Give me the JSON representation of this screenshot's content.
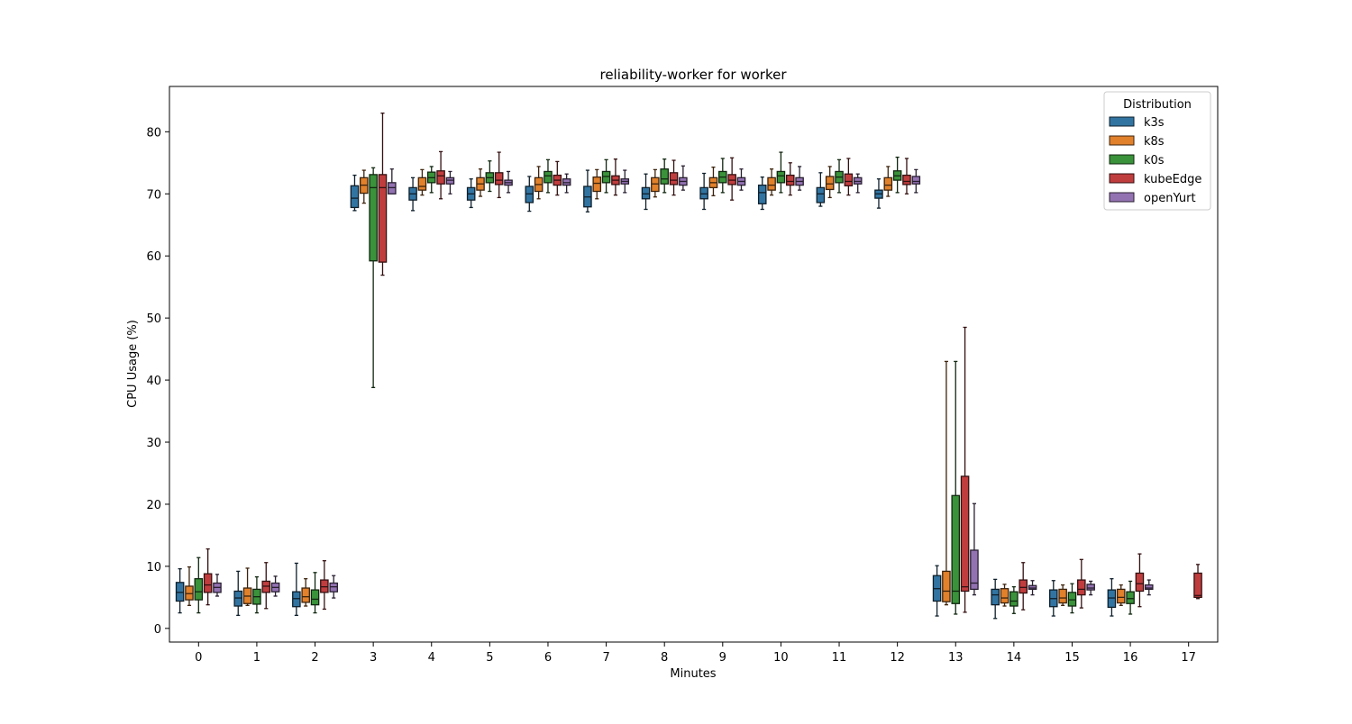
{
  "chart_data": {
    "type": "box",
    "title": "reliability-worker for worker",
    "xlabel": "Minutes",
    "ylabel": "CPU Usage (%)",
    "ylim": [
      -2.2,
      87.3
    ],
    "yticks": [
      0,
      10,
      20,
      30,
      40,
      50,
      60,
      70,
      80
    ],
    "categories": [
      "0",
      "1",
      "2",
      "3",
      "4",
      "5",
      "6",
      "7",
      "8",
      "9",
      "10",
      "11",
      "12",
      "13",
      "14",
      "15",
      "16",
      "17"
    ],
    "grid": false,
    "legend": {
      "title": "Distribution",
      "placement": "top-right"
    },
    "box_fields": [
      "whisker_low",
      "q1",
      "median",
      "q3",
      "whisker_high"
    ],
    "series": [
      {
        "name": "k3s",
        "color": "#3274a1",
        "boxes": [
          [
            2.5,
            4.4,
            5.8,
            7.4,
            9.6
          ],
          [
            2.1,
            3.6,
            4.9,
            6.0,
            9.2
          ],
          [
            2.1,
            3.5,
            4.8,
            5.9,
            10.5
          ],
          [
            67.3,
            67.8,
            69.3,
            71.3,
            73.0
          ],
          [
            67.3,
            69.0,
            70.0,
            71.0,
            72.6
          ],
          [
            67.8,
            69.0,
            70.0,
            71.0,
            72.4
          ],
          [
            67.2,
            68.6,
            70.0,
            71.2,
            72.8
          ],
          [
            67.1,
            67.9,
            69.5,
            71.2,
            73.8
          ],
          [
            67.5,
            69.2,
            70.0,
            71.0,
            73.2
          ],
          [
            67.5,
            69.2,
            70.0,
            71.0,
            73.3
          ],
          [
            67.5,
            68.4,
            70.2,
            71.4,
            72.7
          ],
          [
            68.0,
            68.6,
            70.0,
            71.0,
            73.4
          ],
          [
            67.7,
            69.3,
            70.0,
            70.6,
            72.4
          ],
          [
            2.0,
            4.4,
            6.4,
            8.5,
            10.1
          ],
          [
            1.6,
            3.8,
            5.4,
            6.3,
            7.9
          ],
          [
            2.0,
            3.5,
            4.8,
            6.2,
            7.7
          ],
          [
            2.0,
            3.4,
            4.9,
            6.2,
            8.0
          ],
          null
        ]
      },
      {
        "name": "k8s",
        "color": "#e1812c",
        "boxes": [
          [
            3.7,
            4.6,
            5.6,
            6.8,
            9.9
          ],
          [
            3.7,
            4.0,
            5.2,
            6.5,
            9.7
          ],
          [
            3.6,
            4.2,
            5.1,
            6.5,
            8.0
          ],
          [
            68.5,
            70.1,
            71.4,
            72.6,
            73.8
          ],
          [
            69.8,
            70.6,
            71.2,
            72.6,
            73.9
          ],
          [
            69.6,
            70.6,
            71.6,
            72.6,
            74.0
          ],
          [
            69.2,
            70.4,
            71.5,
            72.6,
            74.4
          ],
          [
            69.2,
            70.4,
            71.7,
            72.7,
            73.9
          ],
          [
            69.5,
            70.4,
            71.6,
            72.6,
            73.9
          ],
          [
            69.7,
            71.0,
            71.8,
            72.6,
            74.3
          ],
          [
            69.8,
            70.6,
            71.4,
            72.6,
            74.0
          ],
          [
            69.4,
            70.7,
            71.6,
            72.8,
            74.4
          ],
          [
            69.6,
            70.6,
            71.4,
            72.6,
            74.4
          ],
          [
            3.8,
            4.3,
            6.0,
            9.2,
            43.0
          ],
          [
            3.6,
            4.1,
            4.9,
            6.4,
            7.1
          ],
          [
            3.7,
            4.1,
            4.9,
            6.3,
            7.0
          ],
          [
            3.7,
            4.1,
            5.0,
            6.3,
            7.0
          ],
          null
        ]
      },
      {
        "name": "k0s",
        "color": "#3a923a",
        "boxes": [
          [
            2.5,
            4.6,
            5.9,
            8.0,
            11.4
          ],
          [
            2.5,
            3.9,
            5.1,
            6.3,
            8.3
          ],
          [
            2.5,
            3.8,
            4.7,
            6.2,
            9.0
          ],
          [
            38.8,
            59.2,
            71.0,
            73.1,
            74.2
          ],
          [
            70.2,
            71.8,
            72.6,
            73.5,
            74.4
          ],
          [
            70.4,
            71.8,
            72.6,
            73.4,
            75.3
          ],
          [
            70.2,
            71.8,
            72.9,
            73.6,
            75.5
          ],
          [
            70.2,
            71.8,
            72.8,
            73.6,
            75.5
          ],
          [
            70.2,
            71.6,
            72.4,
            74.0,
            75.6
          ],
          [
            70.2,
            71.8,
            72.7,
            73.6,
            75.7
          ],
          [
            70.2,
            71.8,
            72.9,
            73.6,
            76.7
          ],
          [
            70.2,
            71.8,
            72.7,
            73.6,
            75.5
          ],
          [
            70.2,
            72.2,
            72.9,
            73.7,
            75.9
          ],
          [
            2.3,
            4.0,
            6.0,
            21.4,
            43.0
          ],
          [
            2.4,
            3.6,
            4.4,
            5.9,
            6.7
          ],
          [
            2.5,
            3.6,
            4.6,
            5.8,
            7.2
          ],
          [
            2.3,
            4.0,
            4.8,
            5.9,
            7.6
          ],
          null
        ]
      },
      {
        "name": "kubeEdge",
        "color": "#c03d3e",
        "boxes": [
          [
            3.8,
            5.8,
            7.0,
            8.8,
            12.8
          ],
          [
            3.2,
            5.8,
            6.8,
            7.6,
            10.6
          ],
          [
            3.1,
            5.8,
            6.7,
            7.8,
            10.9
          ],
          [
            56.9,
            59.0,
            71.0,
            73.1,
            83.0
          ],
          [
            69.2,
            71.6,
            72.9,
            73.7,
            76.8
          ],
          [
            69.4,
            71.5,
            72.2,
            73.4,
            76.7
          ],
          [
            69.8,
            71.4,
            72.2,
            73.0,
            75.2
          ],
          [
            69.8,
            71.5,
            72.2,
            72.9,
            75.6
          ],
          [
            69.8,
            71.5,
            72.2,
            73.4,
            75.4
          ],
          [
            69.0,
            71.5,
            72.2,
            73.1,
            75.8
          ],
          [
            69.8,
            71.4,
            72.0,
            73.0,
            75.0
          ],
          [
            69.8,
            71.3,
            72.0,
            73.2,
            75.7
          ],
          [
            70.0,
            71.5,
            72.0,
            73.0,
            75.7
          ],
          [
            2.6,
            6.0,
            6.7,
            24.5,
            48.5
          ],
          [
            3.0,
            5.7,
            6.6,
            7.8,
            10.6
          ],
          [
            3.3,
            5.4,
            6.3,
            7.8,
            11.1
          ],
          [
            3.5,
            6.0,
            7.2,
            8.9,
            12.0
          ],
          [
            4.8,
            5.0,
            5.3,
            8.9,
            10.3
          ]
        ]
      },
      {
        "name": "openYurt",
        "color": "#9372b2",
        "boxes": [
          [
            5.2,
            5.8,
            6.6,
            7.3,
            8.7
          ],
          [
            5.2,
            5.9,
            6.6,
            7.3,
            8.4
          ],
          [
            4.9,
            5.9,
            6.7,
            7.3,
            8.5
          ],
          [
            70.2,
            70.0,
            71.0,
            71.8,
            74.0
          ],
          [
            70.0,
            71.6,
            72.2,
            72.6,
            73.6
          ],
          [
            70.2,
            71.4,
            71.8,
            72.2,
            73.6
          ],
          [
            70.2,
            71.4,
            71.8,
            72.4,
            73.2
          ],
          [
            70.2,
            71.6,
            72.0,
            72.4,
            73.8
          ],
          [
            70.6,
            71.4,
            72.0,
            72.6,
            74.5
          ],
          [
            70.6,
            71.4,
            72.0,
            72.6,
            74.0
          ],
          [
            70.6,
            71.4,
            72.0,
            72.6,
            74.4
          ],
          [
            70.2,
            71.6,
            72.0,
            72.6,
            73.2
          ],
          [
            70.2,
            71.6,
            72.0,
            72.8,
            73.9
          ],
          [
            5.4,
            6.3,
            7.3,
            12.6,
            20.1
          ],
          [
            5.4,
            6.3,
            6.5,
            6.9,
            7.7
          ],
          [
            5.4,
            6.2,
            6.5,
            7.1,
            7.6
          ],
          [
            5.4,
            6.3,
            6.5,
            7.0,
            7.8
          ],
          null
        ]
      }
    ]
  }
}
